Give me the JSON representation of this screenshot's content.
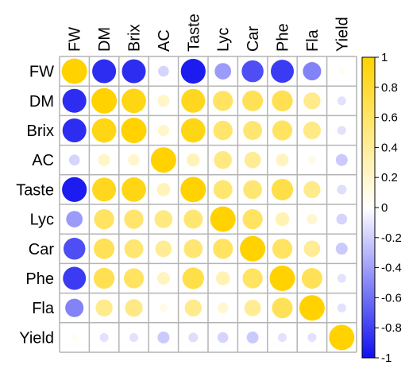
{
  "chart_data": {
    "type": "heatmap",
    "variables": [
      "FW",
      "DM",
      "Brix",
      "AC",
      "Taste",
      "Lyc",
      "Car",
      "Phe",
      "Fla",
      "Yield"
    ],
    "matrix": [
      [
        1,
        -0.88,
        -0.88,
        -0.18,
        -0.95,
        -0.42,
        -0.74,
        -0.82,
        -0.52,
        0.06
      ],
      [
        -0.88,
        1,
        0.92,
        0.22,
        0.88,
        0.62,
        0.66,
        0.68,
        0.45,
        -0.12
      ],
      [
        -0.88,
        0.92,
        1,
        0.2,
        0.92,
        0.58,
        0.56,
        0.62,
        0.48,
        -0.12
      ],
      [
        -0.18,
        0.22,
        0.2,
        1,
        0.27,
        0.5,
        0.42,
        0.25,
        0.1,
        -0.22
      ],
      [
        -0.95,
        0.88,
        0.92,
        0.27,
        1,
        0.56,
        0.55,
        0.72,
        0.45,
        -0.14
      ],
      [
        -0.42,
        0.62,
        0.58,
        0.5,
        0.56,
        1,
        0.62,
        0.3,
        0.18,
        -0.18
      ],
      [
        -0.74,
        0.66,
        0.56,
        0.42,
        0.55,
        0.62,
        1,
        0.62,
        0.42,
        -0.22
      ],
      [
        -0.82,
        0.68,
        0.62,
        0.25,
        0.72,
        0.3,
        0.62,
        1,
        0.66,
        -0.12
      ],
      [
        -0.52,
        0.45,
        0.48,
        0.1,
        0.45,
        0.18,
        0.42,
        0.66,
        1,
        -0.12
      ],
      [
        0.06,
        -0.12,
        -0.12,
        -0.22,
        -0.14,
        -0.18,
        -0.22,
        -0.12,
        -0.12,
        1
      ]
    ],
    "colorbar": {
      "range": [
        -1,
        1
      ],
      "ticks": [
        "-1",
        "-0.8",
        "-0.6",
        "-0.4",
        "-0.2",
        "0",
        "0.2",
        "0.4",
        "0.6",
        "0.8",
        "1"
      ],
      "colors": {
        "negative": "#1010f0",
        "zero": "#ffffff",
        "positive": "#ffd200"
      }
    },
    "grid": true
  }
}
